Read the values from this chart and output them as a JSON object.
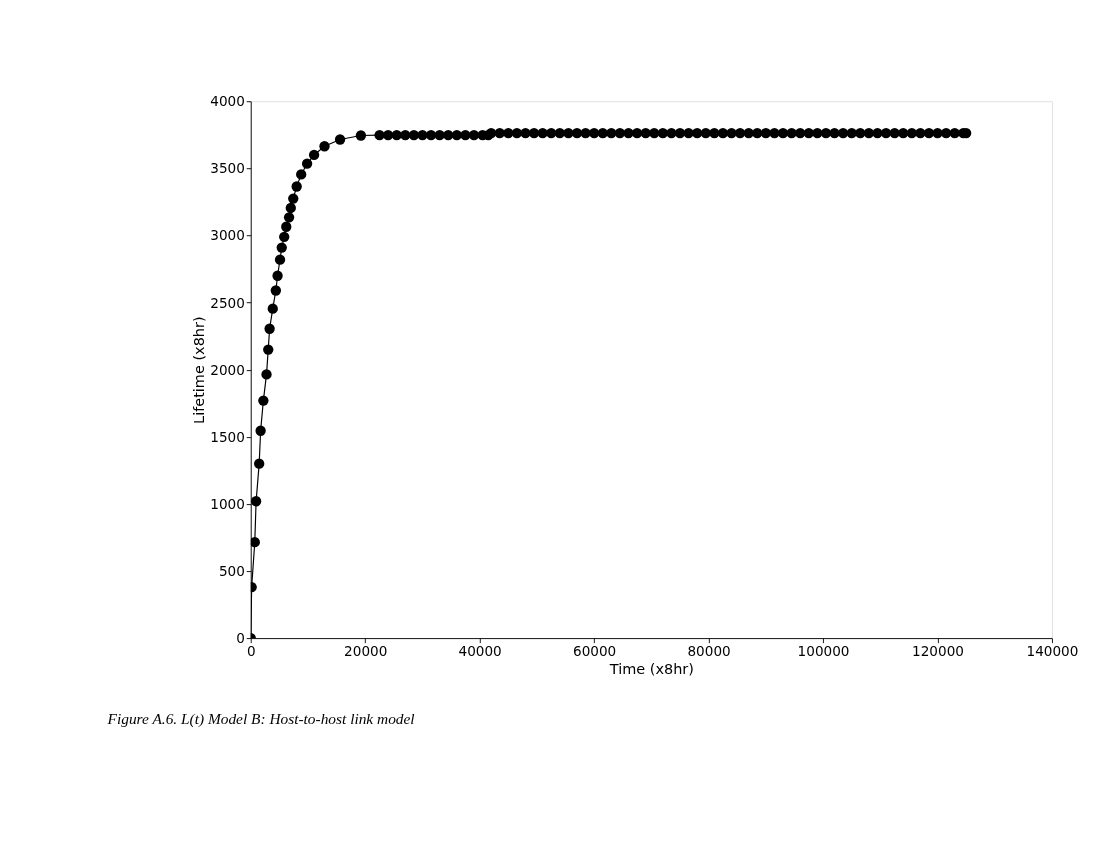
{
  "chart_data": {
    "type": "line",
    "xlabel": "Time (x8hr)",
    "ylabel": "Lifetime (x8hr)",
    "annotations": [
      "Figure A.6. L(t) Model B: Host-to-host link model"
    ],
    "xlim": [
      0,
      140000
    ],
    "xticks": [
      0,
      20000,
      40000,
      60000,
      80000,
      100000,
      120000,
      140000
    ],
    "ylim": [
      0,
      4000
    ],
    "yticks": [
      0,
      500,
      1000,
      1500,
      2000,
      2500,
      3000,
      3500,
      4000
    ],
    "grid": false,
    "marker": "circle",
    "line_style": "solid",
    "series": [
      {
        "color": "#000000",
        "x": [
          0,
          150,
          700,
          930,
          1470,
          1720,
          2200,
          2750,
          3050,
          3290,
          3840,
          4380,
          4680,
          5110,
          5410,
          5840,
          6200,
          6690,
          6990,
          7420,
          8020,
          8810,
          9840,
          11060,
          12880,
          15600,
          19240,
          22500,
          24000,
          25500,
          27000,
          28500,
          30000,
          31500,
          33000,
          34500,
          36000,
          37500,
          39000,
          40500,
          41500,
          42000,
          43500,
          45000,
          46500,
          48000,
          49500,
          51000,
          52500,
          54000,
          55500,
          57000,
          58500,
          60000,
          61500,
          63000,
          64500,
          66000,
          67500,
          69000,
          70500,
          72000,
          73500,
          75000,
          76500,
          78000,
          79500,
          81000,
          82500,
          84000,
          85500,
          87000,
          88500,
          90000,
          91500,
          93000,
          94500,
          96000,
          97500,
          99000,
          100500,
          102000,
          103500,
          105000,
          106500,
          108000,
          109500,
          111000,
          112500,
          114000,
          115500,
          117000,
          118500,
          120000,
          121500,
          123000,
          124500,
          125000
        ],
        "values": [
          0,
          380,
          715,
          1020,
          1300,
          1545,
          1770,
          1965,
          2150,
          2305,
          2455,
          2590,
          2700,
          2820,
          2910,
          2990,
          3065,
          3135,
          3205,
          3275,
          3365,
          3455,
          3535,
          3600,
          3665,
          3715,
          3745,
          3748,
          3748,
          3748,
          3748,
          3748,
          3748,
          3748,
          3748,
          3748,
          3748,
          3748,
          3748,
          3748,
          3748,
          3763,
          3763,
          3763,
          3763,
          3763,
          3763,
          3763,
          3763,
          3763,
          3763,
          3763,
          3763,
          3763,
          3763,
          3763,
          3763,
          3763,
          3763,
          3763,
          3763,
          3763,
          3763,
          3763,
          3763,
          3763,
          3763,
          3763,
          3763,
          3763,
          3763,
          3763,
          3763,
          3763,
          3763,
          3763,
          3763,
          3763,
          3763,
          3763,
          3763,
          3763,
          3763,
          3763,
          3763,
          3763,
          3763,
          3763,
          3763,
          3763,
          3763,
          3763,
          3763,
          3763,
          3763,
          3763,
          3763,
          3763
        ]
      }
    ]
  }
}
